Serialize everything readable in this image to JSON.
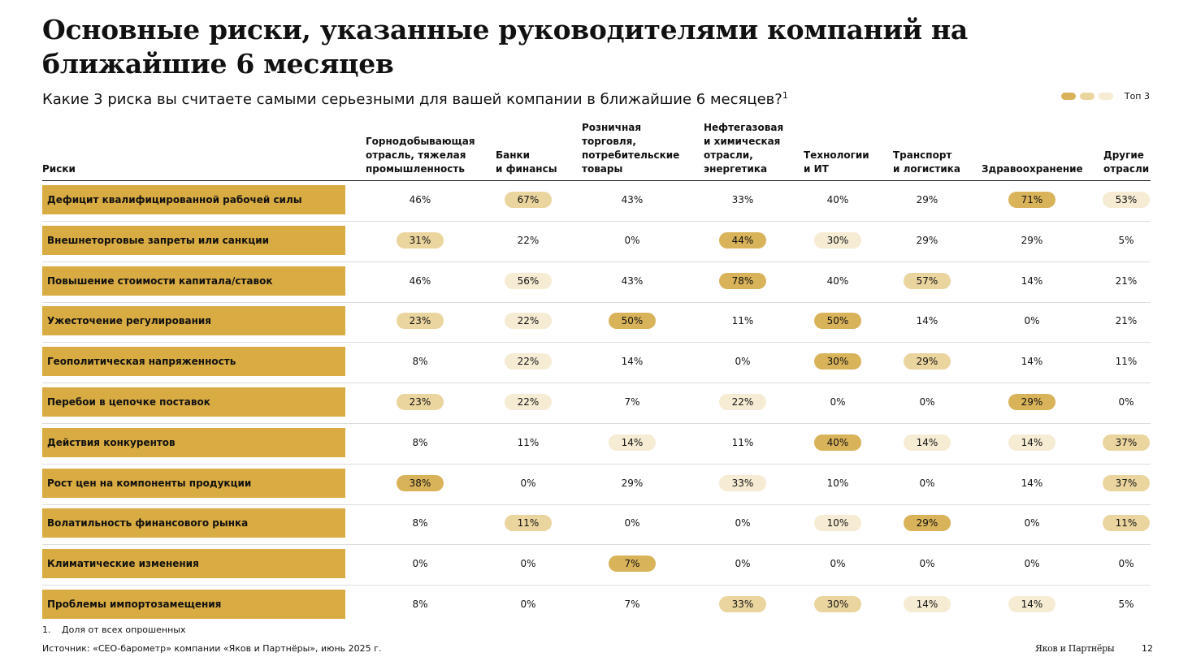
{
  "title": "Основные риски, указанные руководителями компаний на ближайшие 6 месяцев",
  "subtitle": "Какие 3 риска вы считаете самыми серьезными для вашей компании в ближайшие 6 месяцев?",
  "subtitle_sup": "1",
  "legend": {
    "label": "Топ 3",
    "colors": [
      "#d9b35a",
      "#ebd59f",
      "#f6ecd3"
    ]
  },
  "colors": {
    "label_bg": "#d9ab43",
    "rank1": "#d9b35a",
    "rank2": "#ebd59f",
    "rank3": "#f6ecd3"
  },
  "footnote": {
    "number": "1.",
    "text": "Доля от всех опрошенных"
  },
  "source": "Источник: «CEO-барометр» компании «Яков и Партнёры», июнь 2025 г.",
  "brand": "Яков и Партнёры",
  "page_number": "12",
  "chart_data": {
    "type": "table",
    "row_header": "Риски",
    "columns": [
      "Горнодобывающая отрасль, тяжелая промышленность",
      "Банки и финансы",
      "Розничная торговля, потребительские товары",
      "Нефтегазовая и химическая отрасли, энергетика",
      "Технологии и ИТ",
      "Транспорт и логистика",
      "Здравоохранение",
      "Другие отрасли"
    ],
    "column_header_lines": [
      [
        "Горнодобывающая",
        "отрасль, тяжелая",
        "промышленность"
      ],
      [
        "Банки",
        "и финансы"
      ],
      [
        "Розничная",
        "торговля,",
        "потребительские",
        "товары"
      ],
      [
        "Нефтегазовая",
        "и химическая",
        "отрасли,",
        "энергетика"
      ],
      [
        "Технологии",
        "и ИТ"
      ],
      [
        "Транспорт",
        "и логистика"
      ],
      [
        "Здравоохранение"
      ],
      [
        "Другие",
        "отрасли"
      ]
    ],
    "rows": [
      {
        "risk": "Дефицит квалифицированной рабочей силы",
        "values": [
          "46%",
          "67%",
          "43%",
          "33%",
          "40%",
          "29%",
          "71%",
          "53%"
        ],
        "ranks": [
          0,
          2,
          0,
          0,
          0,
          0,
          1,
          3
        ]
      },
      {
        "risk": "Внешнеторговые запреты или санкции",
        "values": [
          "31%",
          "22%",
          "0%",
          "44%",
          "30%",
          "29%",
          "29%",
          "5%"
        ],
        "ranks": [
          2,
          0,
          0,
          1,
          3,
          0,
          0,
          0
        ]
      },
      {
        "risk": "Повышение стоимости капитала/ставок",
        "values": [
          "46%",
          "56%",
          "43%",
          "78%",
          "40%",
          "57%",
          "14%",
          "21%"
        ],
        "ranks": [
          0,
          3,
          0,
          1,
          0,
          2,
          0,
          0
        ]
      },
      {
        "risk": "Ужесточение регулирования",
        "values": [
          "23%",
          "22%",
          "50%",
          "11%",
          "50%",
          "14%",
          "0%",
          "21%"
        ],
        "ranks": [
          2,
          3,
          1,
          0,
          1,
          0,
          0,
          0
        ]
      },
      {
        "risk": "Геополитическая напряженность",
        "values": [
          "8%",
          "22%",
          "14%",
          "0%",
          "30%",
          "29%",
          "14%",
          "11%"
        ],
        "ranks": [
          0,
          3,
          0,
          0,
          1,
          2,
          0,
          0
        ]
      },
      {
        "risk": "Перебои в цепочке поставок",
        "values": [
          "23%",
          "22%",
          "7%",
          "22%",
          "0%",
          "0%",
          "29%",
          "0%"
        ],
        "ranks": [
          2,
          3,
          0,
          3,
          0,
          0,
          1,
          0
        ]
      },
      {
        "risk": "Действия конкурентов",
        "values": [
          "8%",
          "11%",
          "14%",
          "11%",
          "40%",
          "14%",
          "14%",
          "37%"
        ],
        "ranks": [
          0,
          0,
          3,
          0,
          1,
          3,
          3,
          2
        ]
      },
      {
        "risk": "Рост цен на компоненты продукции",
        "values": [
          "38%",
          "0%",
          "29%",
          "33%",
          "10%",
          "0%",
          "14%",
          "37%"
        ],
        "ranks": [
          1,
          0,
          0,
          3,
          0,
          0,
          0,
          2
        ]
      },
      {
        "risk": "Волатильность финансового рынка",
        "values": [
          "8%",
          "11%",
          "0%",
          "0%",
          "10%",
          "29%",
          "0%",
          "11%"
        ],
        "ranks": [
          0,
          2,
          0,
          0,
          3,
          1,
          0,
          2
        ]
      },
      {
        "risk": "Климатические изменения",
        "values": [
          "0%",
          "0%",
          "7%",
          "0%",
          "0%",
          "0%",
          "0%",
          "0%"
        ],
        "ranks": [
          0,
          0,
          1,
          0,
          0,
          0,
          0,
          0
        ]
      },
      {
        "risk": "Проблемы импортозамещения",
        "values": [
          "8%",
          "0%",
          "7%",
          "33%",
          "30%",
          "14%",
          "14%",
          "5%"
        ],
        "ranks": [
          0,
          0,
          0,
          2,
          2,
          3,
          3,
          0
        ]
      }
    ]
  }
}
